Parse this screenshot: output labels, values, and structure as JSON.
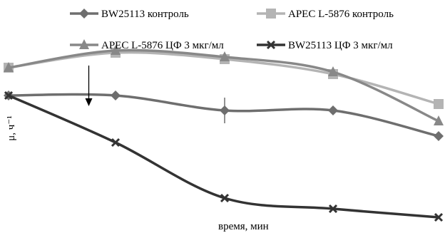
{
  "chart_data": {
    "type": "line",
    "title": "",
    "xlabel": "время, мин",
    "ylabel": "μ, ч⁻¹",
    "x": [
      0,
      1,
      2,
      3,
      4,
      5
    ],
    "ylim": [
      0,
      1
    ],
    "grid": false,
    "legend_position": "top",
    "series": [
      {
        "name": "BW25113  контроль",
        "color": "#6e6e6e",
        "marker": "diamond",
        "values": [
          0.62,
          0.62,
          0.55,
          0.55,
          0.43,
          0.43
        ],
        "error": [
          0,
          0.02,
          0.06,
          0.0,
          0.0,
          0.0
        ]
      },
      {
        "name": "APEC L-5876 контроль",
        "color": "#b4b4b4",
        "marker": "square",
        "values": [
          0.75,
          0.82,
          0.79,
          0.72,
          0.58,
          0.58
        ]
      },
      {
        "name": "APEC L-5876 ЦФ 3 мкг/мл",
        "color": "#888888",
        "marker": "triangle",
        "values": [
          0.75,
          0.83,
          0.8,
          0.73,
          0.5,
          0.5
        ]
      },
      {
        "name": "BW25113 ЦФ 3 мкг/мл",
        "color": "#333333",
        "marker": "x",
        "values": [
          0.62,
          0.4,
          0.14,
          0.09,
          0.05,
          0.05
        ]
      }
    ],
    "annotations": [
      {
        "type": "arrow",
        "x": 0.75,
        "from_y": 0.76,
        "to_y": 0.57
      }
    ]
  }
}
